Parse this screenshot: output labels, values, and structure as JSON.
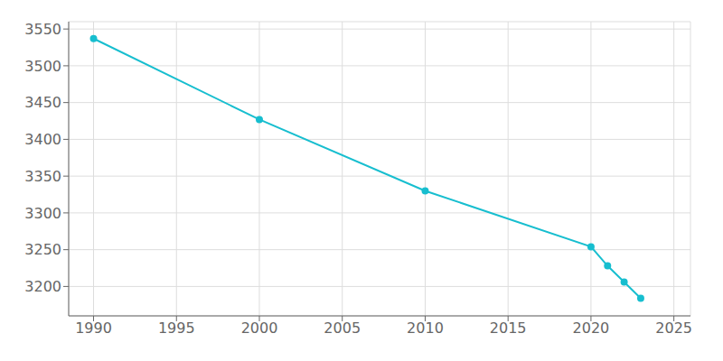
{
  "chart_data": {
    "type": "line",
    "x": [
      1990,
      2000,
      2010,
      2020,
      2021,
      2022,
      2023
    ],
    "values": [
      3537,
      3427,
      3330,
      3254,
      3228,
      3206,
      3184
    ],
    "color": "#17becf",
    "marker": "circle",
    "xlim": [
      1988.5,
      2026
    ],
    "ylim": [
      3160,
      3560
    ],
    "xticks": [
      1990,
      1995,
      2000,
      2005,
      2010,
      2015,
      2020,
      2025
    ],
    "yticks": [
      3200,
      3250,
      3300,
      3350,
      3400,
      3450,
      3500,
      3550
    ],
    "grid": true
  }
}
